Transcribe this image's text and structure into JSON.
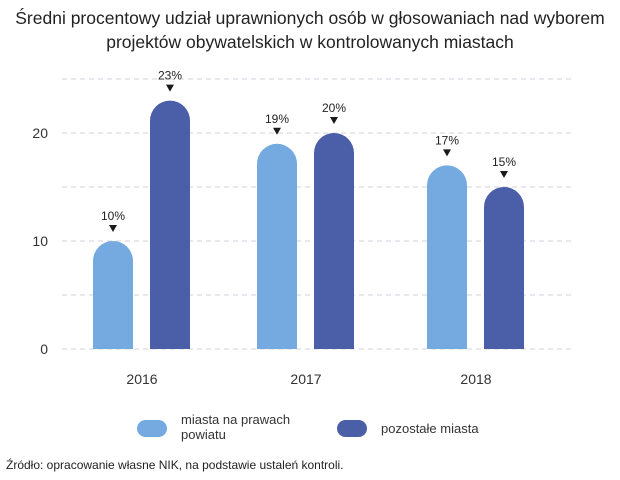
{
  "chart_data": {
    "type": "bar",
    "title_lines": [
      "Średni procentowy udział uprawnionych osób w głosowaniach nad wyborem",
      "projektów obywatelskich w kontrolowanych miastach"
    ],
    "categories": [
      "2016",
      "2017",
      "2018"
    ],
    "series": [
      {
        "name": "miasta na prawach powiatu",
        "legend_lines": [
          "miasta na prawach",
          "powiatu"
        ],
        "values": [
          10,
          19,
          17
        ],
        "labels": [
          "10%",
          "19%",
          "17%"
        ],
        "color": "#74aae0"
      },
      {
        "name": "pozostałe miasta",
        "legend_lines": [
          "pozostałe miasta"
        ],
        "values": [
          23,
          20,
          15
        ],
        "labels": [
          "23%",
          "20%",
          "15%"
        ],
        "color": "#4a5fa8"
      }
    ],
    "yticks": [
      "0",
      "10",
      "20"
    ],
    "ylim": [
      0,
      23
    ],
    "grid": true,
    "legend_position": "bottom",
    "source": "Źródło: opracowanie własne NIK, na podstawie ustaleń kontroli."
  }
}
